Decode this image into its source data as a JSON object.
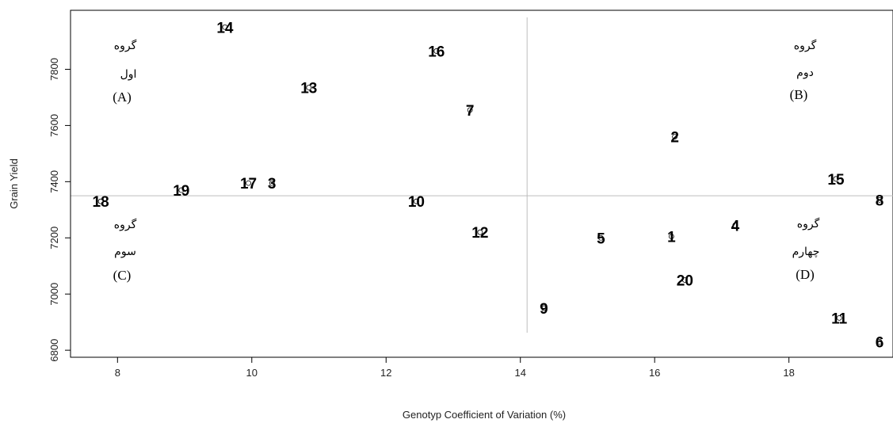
{
  "chart_data": {
    "type": "scatter",
    "xlabel": "Genotyp Coefficient of Variation (%)",
    "ylabel": "Grain Yield",
    "xlim": [
      7.3,
      19.55
    ],
    "ylim": [
      6775,
      8010
    ],
    "x_ticks": [
      8,
      10,
      12,
      14,
      16,
      18
    ],
    "y_ticks": [
      6800,
      7000,
      7200,
      7400,
      7600,
      7800
    ],
    "reference_lines": {
      "x": 14.1,
      "y": 7350
    },
    "points": [
      {
        "label": "1",
        "x": 16.25,
        "y": 7205
      },
      {
        "label": "2",
        "x": 16.3,
        "y": 7560
      },
      {
        "label": "3",
        "x": 10.3,
        "y": 7395
      },
      {
        "label": "4",
        "x": 17.2,
        "y": 7245
      },
      {
        "label": "5",
        "x": 15.2,
        "y": 7200
      },
      {
        "label": "6",
        "x": 19.35,
        "y": 6830
      },
      {
        "label": "7",
        "x": 13.25,
        "y": 7655
      },
      {
        "label": "8",
        "x": 19.35,
        "y": 7335
      },
      {
        "label": "9",
        "x": 14.35,
        "y": 6950
      },
      {
        "label": "10",
        "x": 12.45,
        "y": 7330
      },
      {
        "label": "11",
        "x": 18.75,
        "y": 6915
      },
      {
        "label": "12",
        "x": 13.4,
        "y": 7220
      },
      {
        "label": "13",
        "x": 10.85,
        "y": 7735
      },
      {
        "label": "14",
        "x": 9.6,
        "y": 7950
      },
      {
        "label": "15",
        "x": 18.7,
        "y": 7410
      },
      {
        "label": "16",
        "x": 12.75,
        "y": 7865
      },
      {
        "label": "17",
        "x": 9.95,
        "y": 7395
      },
      {
        "label": "18",
        "x": 7.75,
        "y": 7330
      },
      {
        "label": "19",
        "x": 8.95,
        "y": 7370
      },
      {
        "label": "20",
        "x": 16.45,
        "y": 7050
      }
    ],
    "groups": [
      {
        "line1": "گروه",
        "line2": "اول",
        "letter": "(A)"
      },
      {
        "line1": "گروه",
        "line2": "دوم",
        "letter": "(B)"
      },
      {
        "line1": "گروه",
        "line2": "سوم",
        "letter": "(C)"
      },
      {
        "line1": "گروه",
        "line2": "چهارم",
        "letter": "(D)"
      }
    ],
    "colors": {
      "reference_line": "#bdbdbd",
      "axis": "#000000",
      "text": "#000000"
    }
  }
}
